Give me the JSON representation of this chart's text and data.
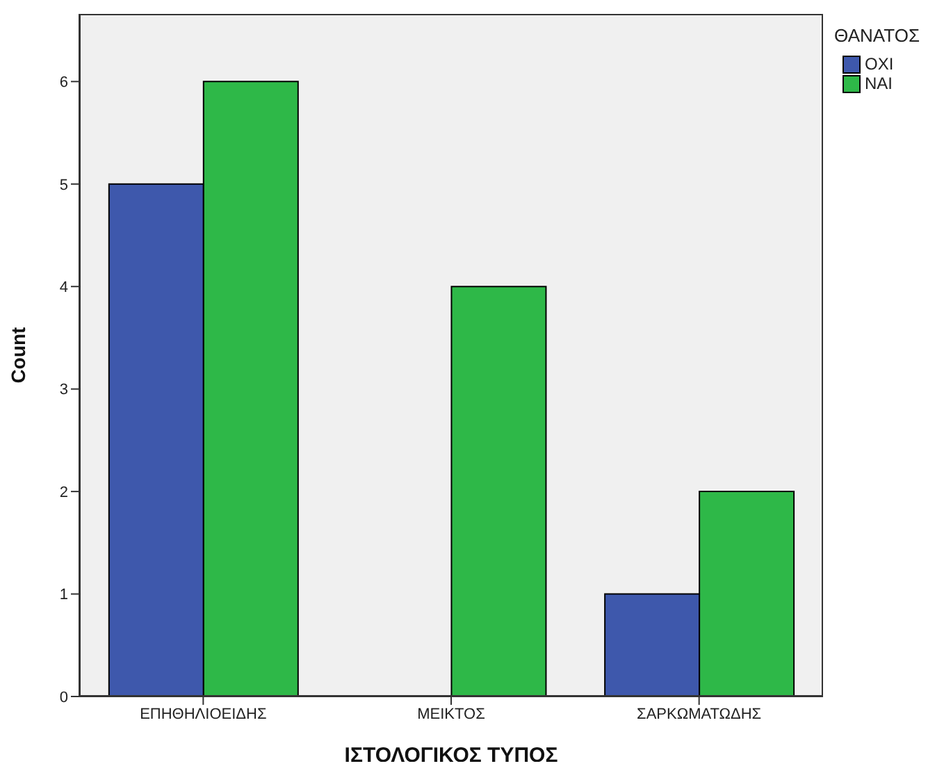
{
  "chart_data": {
    "type": "bar",
    "xlabel": "ΙΣΤΟΛΟΓΙΚΟΣ ΤΥΠΟΣ",
    "ylabel": "Count",
    "legend_title": "ΘΑΝΑΤΟΣ",
    "categories": [
      "ΕΠΗΘΗΛΙΟΕΙΔΗΣ",
      "ΜΕΙΚΤΟΣ",
      "ΣΑΡΚΩΜΑΤΩΔΗΣ"
    ],
    "series": [
      {
        "name": "ΟΧΙ",
        "color": "#3e58ac",
        "values": [
          5,
          0,
          1
        ]
      },
      {
        "name": "ΝΑΙ",
        "color": "#2eb848",
        "values": [
          6,
          4,
          2
        ]
      }
    ],
    "ylim": [
      0,
      6.66
    ],
    "yticks": [
      0,
      1,
      2,
      3,
      4,
      5,
      6
    ],
    "legend": "top right"
  }
}
